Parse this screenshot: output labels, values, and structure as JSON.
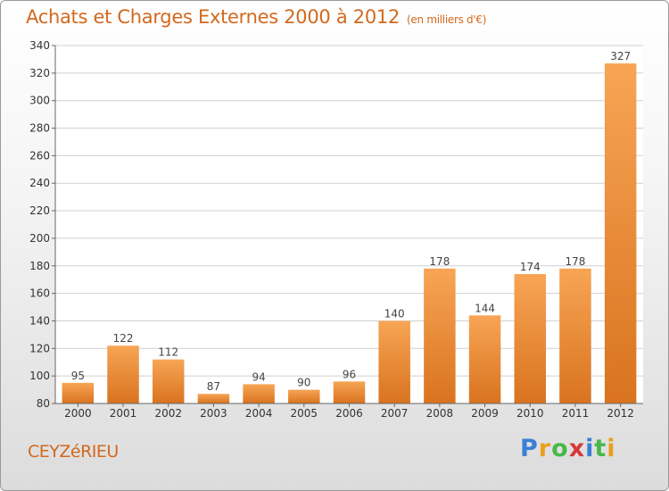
{
  "header": {
    "title": "Achats et Charges Externes 2000 à 2012",
    "subtitle": "(en milliers d'€)"
  },
  "footer": {
    "place": "CEYZéRIEU",
    "logo_letters": [
      "P",
      "r",
      "o",
      "x",
      "i",
      "t",
      "i"
    ],
    "logo_colors": [
      "#3a7fd5",
      "#e8a020",
      "#48b848",
      "#d83838",
      "#3a7fd5",
      "#48b848",
      "#e8a020"
    ]
  },
  "colors": {
    "bar_light": "#f7a555",
    "bar_dark": "#d9731f",
    "text_accent": "#d2691e"
  },
  "chart_data": {
    "type": "bar",
    "categories": [
      "2000",
      "2001",
      "2002",
      "2003",
      "2004",
      "2005",
      "2006",
      "2007",
      "2008",
      "2009",
      "2010",
      "2011",
      "2012"
    ],
    "values": [
      95,
      122,
      112,
      87,
      94,
      90,
      96,
      140,
      178,
      144,
      174,
      178,
      327
    ],
    "title": "Achats et Charges Externes 2000 à 2012",
    "ylim": [
      80,
      340
    ],
    "yticks": [
      80,
      100,
      120,
      140,
      160,
      180,
      200,
      220,
      240,
      260,
      280,
      300,
      320,
      340
    ],
    "grid": true,
    "legend": "none"
  }
}
